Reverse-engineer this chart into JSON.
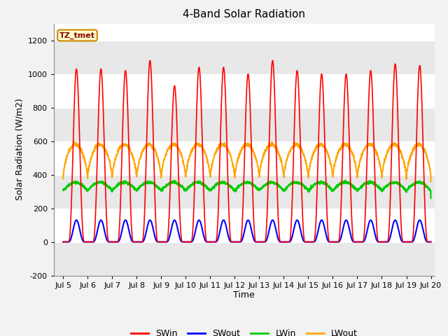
{
  "title": "4-Band Solar Radiation",
  "xlabel": "Time",
  "ylabel": "Solar Radiation (W/m2)",
  "ylim": [
    -200,
    1300
  ],
  "xlim_days": [
    4.62,
    20.15
  ],
  "annotation": "TZ_tmet",
  "xtick_labels": [
    "Jul 5",
    "Jul 6",
    "Jul 7",
    "Jul 8",
    "Jul 9",
    "Jul 10",
    "Jul 11",
    "Jul 12",
    "Jul 13",
    "Jul 14",
    "Jul 15",
    "Jul 16",
    "Jul 17",
    "Jul 18",
    "Jul 19",
    "Jul 20"
  ],
  "xtick_positions": [
    5,
    6,
    7,
    8,
    9,
    10,
    11,
    12,
    13,
    14,
    15,
    16,
    17,
    18,
    19,
    20
  ],
  "ytick_labels": [
    "-200",
    "0",
    "200",
    "400",
    "600",
    "800",
    "1000",
    "1200"
  ],
  "ytick_positions": [
    -200,
    0,
    200,
    400,
    600,
    800,
    1000,
    1200
  ],
  "colors": {
    "SWin": "#ff0000",
    "SWout": "#0000ff",
    "LWin": "#00cc00",
    "LWout": "#ffa500"
  },
  "line_widths": {
    "SWin": 1.2,
    "SWout": 1.5,
    "LWin": 1.5,
    "LWout": 1.5
  },
  "legend_labels": [
    "SWin",
    "SWout",
    "LWin",
    "LWout"
  ],
  "fig_bg_color": "#f2f2f2",
  "plot_bg_color": "#ffffff",
  "grid_color": "#d0d0d0",
  "title_fontsize": 11,
  "axis_label_fontsize": 9,
  "tick_fontsize": 8,
  "SWin_peaks": [
    1030,
    1030,
    1020,
    1080,
    930,
    1040,
    1040,
    1000,
    1080,
    1020,
    1000,
    1000,
    1020,
    1060,
    1050
  ],
  "SWout_peak": 130,
  "LWin_base": 305,
  "LWin_amp": 50,
  "LWout_night": 375,
  "LWout_day_peak": 580
}
